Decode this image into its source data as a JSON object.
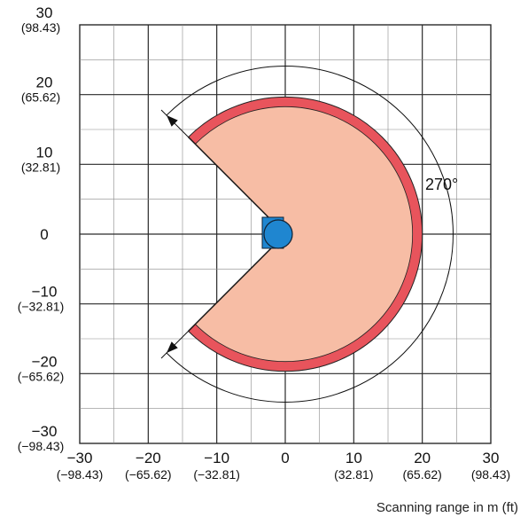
{
  "diagram": {
    "x_ticks": [
      {
        "value": -30,
        "label": "−30",
        "sub": "(−98.43)"
      },
      {
        "value": -20,
        "label": "−20",
        "sub": "(−65.62)"
      },
      {
        "value": -10,
        "label": "−10",
        "sub": "(−32.81)"
      },
      {
        "value": 0,
        "label": "0",
        "sub": ""
      },
      {
        "value": 10,
        "label": "10",
        "sub": "(32.81)"
      },
      {
        "value": 20,
        "label": "20",
        "sub": "(65.62)"
      },
      {
        "value": 30,
        "label": "30",
        "sub": "(98.43)"
      }
    ],
    "y_ticks": [
      {
        "value": 30,
        "label": "30",
        "sub": "(98.43)"
      },
      {
        "value": 20,
        "label": "20",
        "sub": "(65.62)"
      },
      {
        "value": 10,
        "label": "10",
        "sub": "(32.81)"
      },
      {
        "value": 0,
        "label": "0",
        "sub": ""
      },
      {
        "value": -10,
        "label": "−10",
        "sub": "(−32.81)"
      },
      {
        "value": -20,
        "label": "−20",
        "sub": "(−65.62)"
      },
      {
        "value": -30,
        "label": "−30",
        "sub": "(−98.43)"
      }
    ],
    "angle_label": "270°",
    "x_axis_title": "Scanning range in m (ft)",
    "scan_range_m": 20,
    "scan_angle_deg": 270,
    "colors": {
      "field_fill": "#f7bda5",
      "field_rim": "#e8545c",
      "sensor_blue": "#1f86d0",
      "grid": "#2a2a2a"
    }
  }
}
